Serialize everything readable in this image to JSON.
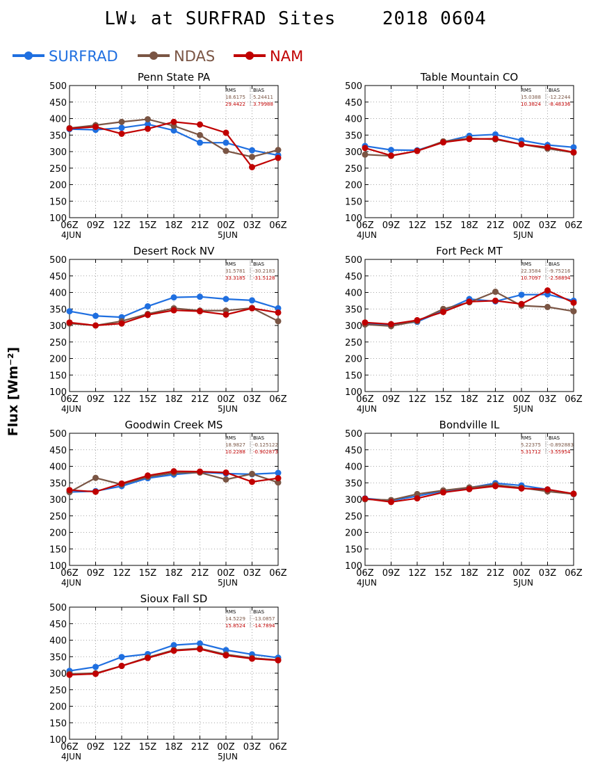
{
  "title": "LW↓ at SURFRAD Sites    2018 0604",
  "ylabel": "Flux [Wm⁻²]",
  "legend": [
    {
      "name": "SURFRAD",
      "color": "#1f6fe0"
    },
    {
      "name": "NDAS",
      "color": "#7a5544"
    },
    {
      "name": "NAM",
      "color": "#c00000"
    }
  ],
  "stats_header": {
    "rms": "RMS",
    "bias": "BIAS"
  },
  "x_ticks": [
    "06Z",
    "09Z",
    "12Z",
    "15Z",
    "18Z",
    "21Z",
    "00Z",
    "03Z",
    "06Z"
  ],
  "x_day_labels": [
    {
      "label": "4JUN",
      "index": 0
    },
    {
      "label": "5JUN",
      "index": 6
    }
  ],
  "chart_data": [
    {
      "type": "line",
      "title": "Penn State PA",
      "x": [
        "06Z",
        "09Z",
        "12Z",
        "15Z",
        "18Z",
        "21Z",
        "00Z",
        "03Z",
        "06Z"
      ],
      "ylim": [
        100,
        500
      ],
      "yticks": [
        100,
        150,
        200,
        250,
        300,
        350,
        400,
        450,
        500
      ],
      "grid": true,
      "series": [
        {
          "name": "SURFRAD",
          "values": [
            368,
            366,
            372,
            383,
            364,
            327,
            327,
            304,
            289
          ]
        },
        {
          "name": "NDAS",
          "values": [
            371,
            380,
            390,
            398,
            378,
            350,
            302,
            284,
            305
          ]
        },
        {
          "name": "NAM",
          "values": [
            370,
            375,
            354,
            369,
            390,
            382,
            357,
            253,
            281
          ]
        }
      ],
      "stats": [
        {
          "rms": "18.6175",
          "bias": "5.24411"
        },
        {
          "rms": "29.4422",
          "bias": "3.79988"
        }
      ]
    },
    {
      "type": "line",
      "title": "Table Mountain CO",
      "x": [
        "06Z",
        "09Z",
        "12Z",
        "15Z",
        "18Z",
        "21Z",
        "00Z",
        "03Z",
        "06Z"
      ],
      "ylim": [
        100,
        500
      ],
      "yticks": [
        100,
        150,
        200,
        250,
        300,
        350,
        400,
        450,
        500
      ],
      "grid": true,
      "series": [
        {
          "name": "SURFRAD",
          "values": [
            317,
            305,
            304,
            329,
            348,
            352,
            334,
            320,
            313
          ]
        },
        {
          "name": "NDAS",
          "values": [
            291,
            287,
            302,
            331,
            340,
            337,
            322,
            309,
            297
          ]
        },
        {
          "name": "NAM",
          "values": [
            311,
            288,
            302,
            328,
            338,
            339,
            322,
            313,
            298
          ]
        }
      ],
      "stats": [
        {
          "rms": "15.0388",
          "bias": "-12.2244"
        },
        {
          "rms": "10.3824",
          "bias": "-8.48336"
        }
      ]
    },
    {
      "type": "line",
      "title": "Desert Rock NV",
      "x": [
        "06Z",
        "09Z",
        "12Z",
        "15Z",
        "18Z",
        "21Z",
        "00Z",
        "03Z",
        "06Z"
      ],
      "ylim": [
        100,
        500
      ],
      "yticks": [
        100,
        150,
        200,
        250,
        300,
        350,
        400,
        450,
        500
      ],
      "grid": true,
      "series": [
        {
          "name": "SURFRAD",
          "values": [
            343,
            329,
            325,
            358,
            385,
            387,
            380,
            376,
            352
          ]
        },
        {
          "name": "NDAS",
          "values": [
            306,
            300,
            313,
            335,
            352,
            345,
            345,
            353,
            313
          ]
        },
        {
          "name": "NAM",
          "values": [
            309,
            300,
            306,
            332,
            346,
            343,
            333,
            352,
            339
          ]
        }
      ],
      "stats": [
        {
          "rms": "31.5781",
          "bias": "-30.2183"
        },
        {
          "rms": "33.3185",
          "bias": "-31.5128"
        }
      ]
    },
    {
      "type": "line",
      "title": "Fort Peck MT",
      "x": [
        "06Z",
        "09Z",
        "12Z",
        "15Z",
        "18Z",
        "21Z",
        "00Z",
        "03Z",
        "06Z"
      ],
      "ylim": [
        100,
        500
      ],
      "yticks": [
        100,
        150,
        200,
        250,
        300,
        350,
        400,
        450,
        500
      ],
      "grid": true,
      "series": [
        {
          "name": "SURFRAD",
          "values": [
            306,
            302,
            311,
            345,
            380,
            373,
            393,
            394,
            375
          ]
        },
        {
          "name": "NDAS",
          "values": [
            303,
            298,
            313,
            350,
            370,
            402,
            360,
            356,
            343
          ]
        },
        {
          "name": "NAM",
          "values": [
            309,
            304,
            316,
            341,
            372,
            375,
            365,
            406,
            369
          ]
        }
      ],
      "stats": [
        {
          "rms": "22.3584",
          "bias": "-9.75216"
        },
        {
          "rms": "10.7097",
          "bias": "-2.58894"
        }
      ]
    },
    {
      "type": "line",
      "title": "Goodwin Creek MS",
      "x": [
        "06Z",
        "09Z",
        "12Z",
        "15Z",
        "18Z",
        "21Z",
        "00Z",
        "03Z",
        "06Z"
      ],
      "ylim": [
        100,
        500
      ],
      "yticks": [
        100,
        150,
        200,
        250,
        300,
        350,
        400,
        450,
        500
      ],
      "grid": true,
      "series": [
        {
          "name": "SURFRAD",
          "values": [
            322,
            325,
            340,
            364,
            375,
            382,
            378,
            376,
            380
          ]
        },
        {
          "name": "NDAS",
          "values": [
            322,
            365,
            345,
            368,
            380,
            381,
            360,
            377,
            351
          ]
        },
        {
          "name": "NAM",
          "values": [
            328,
            323,
            348,
            372,
            385,
            384,
            381,
            353,
            364
          ]
        }
      ],
      "stats": [
        {
          "rms": "18.9827",
          "bias": "-0.125122"
        },
        {
          "rms": "10.2288",
          "bias": "-0.902873"
        }
      ]
    },
    {
      "type": "line",
      "title": "Bondville IL",
      "x": [
        "06Z",
        "09Z",
        "12Z",
        "15Z",
        "18Z",
        "21Z",
        "00Z",
        "03Z",
        "06Z"
      ],
      "ylim": [
        100,
        500
      ],
      "yticks": [
        100,
        150,
        200,
        250,
        300,
        350,
        400,
        450,
        500
      ],
      "grid": true,
      "series": [
        {
          "name": "SURFRAD",
          "values": [
            303,
            296,
            310,
            325,
            335,
            349,
            342,
            330,
            316
          ]
        },
        {
          "name": "NDAS",
          "values": [
            300,
            298,
            316,
            327,
            336,
            344,
            335,
            324,
            316
          ]
        },
        {
          "name": "NAM",
          "values": [
            302,
            292,
            303,
            321,
            331,
            340,
            333,
            330,
            317
          ]
        }
      ],
      "stats": [
        {
          "rms": "5.22375",
          "bias": "-0.892883"
        },
        {
          "rms": "5.31712",
          "bias": "-3.55954"
        }
      ]
    },
    {
      "type": "line",
      "title": "Sioux Fall SD",
      "x": [
        "06Z",
        "09Z",
        "12Z",
        "15Z",
        "18Z",
        "21Z",
        "00Z",
        "03Z",
        "06Z"
      ],
      "ylim": [
        100,
        500
      ],
      "yticks": [
        100,
        150,
        200,
        250,
        300,
        350,
        400,
        450,
        500
      ],
      "grid": true,
      "series": [
        {
          "name": "SURFRAD",
          "values": [
            307,
            319,
            349,
            358,
            385,
            390,
            370,
            357,
            347
          ]
        },
        {
          "name": "NDAS",
          "values": [
            298,
            300,
            322,
            348,
            370,
            375,
            357,
            346,
            340
          ]
        },
        {
          "name": "NAM",
          "values": [
            295,
            298,
            322,
            346,
            368,
            373,
            354,
            344,
            339
          ]
        }
      ],
      "stats": [
        {
          "rms": "14.5229",
          "bias": "-13.0857"
        },
        {
          "rms": "15.8524",
          "bias": "-14.7894"
        }
      ]
    }
  ]
}
